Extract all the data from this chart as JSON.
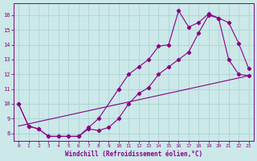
{
  "xlabel": "Windchill (Refroidissement éolien,°C)",
  "bg_color": "#cce8e8",
  "grid_color": "#aad4d4",
  "line_color": "#880088",
  "xlim": [
    -0.5,
    23.5
  ],
  "ylim": [
    7.5,
    16.8
  ],
  "xticks": [
    0,
    1,
    2,
    3,
    4,
    5,
    6,
    7,
    8,
    9,
    10,
    11,
    12,
    13,
    14,
    15,
    16,
    17,
    18,
    19,
    20,
    21,
    22,
    23
  ],
  "yticks": [
    8,
    9,
    10,
    11,
    12,
    13,
    14,
    15,
    16
  ],
  "line1_x": [
    0,
    1,
    2,
    3,
    4,
    5,
    6,
    7,
    8,
    10,
    11,
    12,
    13,
    14,
    15,
    16,
    17,
    18,
    19,
    20,
    21,
    22,
    23
  ],
  "line1_y": [
    10.0,
    8.5,
    8.3,
    7.8,
    7.8,
    7.8,
    7.8,
    8.4,
    9.0,
    11.0,
    12.0,
    12.5,
    13.0,
    13.9,
    14.0,
    16.3,
    15.2,
    15.5,
    16.1,
    15.8,
    15.5,
    14.1,
    12.4
  ],
  "line2_x": [
    0,
    1,
    2,
    3,
    4,
    5,
    6,
    7,
    8,
    9,
    10,
    11,
    12,
    13,
    14,
    15,
    16,
    17,
    18,
    19,
    20,
    21,
    22,
    23
  ],
  "line2_y": [
    10.0,
    8.5,
    8.3,
    7.8,
    7.8,
    7.8,
    7.8,
    8.3,
    8.2,
    8.4,
    9.0,
    10.0,
    10.7,
    11.1,
    12.0,
    12.5,
    13.0,
    13.5,
    14.8,
    16.0,
    15.8,
    13.0,
    12.0,
    11.9
  ],
  "line3_x": [
    0,
    23
  ],
  "line3_y": [
    8.5,
    11.9
  ]
}
